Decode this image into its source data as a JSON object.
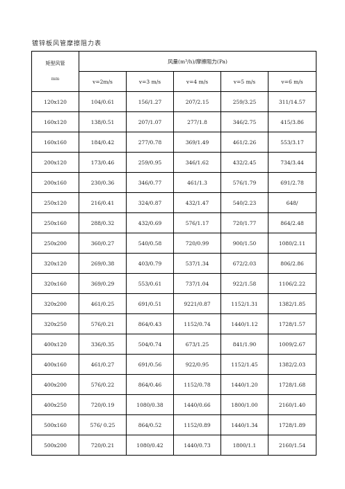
{
  "title": "镀锌板风管摩擦阻力表",
  "header": {
    "corner_label": "矩型风管",
    "corner_unit": "mm",
    "group_label": "风量(m³/h)/摩擦阻力(Pa)",
    "velocities": [
      "v=2m/s",
      "v=3 m/s",
      "v=4 m/s",
      "v=5 m/s",
      "v=6 m/s"
    ]
  },
  "rows": [
    [
      "120x120",
      "104/0.61",
      "156/1.27",
      "207/2.15",
      "259/3.25",
      "311/14.57"
    ],
    [
      "160x120",
      "138/0.51",
      "207/1.07",
      "277/1.8",
      "346/2.75",
      "415/3.86"
    ],
    [
      "160x160",
      "184/0.42",
      "277/0.78",
      "369/1.49",
      "461/2.26",
      "553/3.17"
    ],
    [
      "200x120",
      "173/0.46",
      "259/0.95",
      "346/1.62",
      "432/2.45",
      "734/3.44"
    ],
    [
      "200x160",
      "230/0.36",
      "346/0.77",
      "461/1.3",
      "576/1.79",
      "691/2.78"
    ],
    [
      "250x120",
      "216/0.41",
      "324/0.87",
      "432/1.47",
      "540/2.23",
      "648/"
    ],
    [
      "250x160",
      "288/0.32",
      "432/0.69",
      "576/1.17",
      "720/1.77",
      "864/2.48"
    ],
    [
      "250x200",
      "360/0.27",
      "540/0.58",
      "720/0.99",
      "900/1.50",
      "1080/2.11"
    ],
    [
      "320x120",
      "269/0.38",
      "403/0.79",
      "537/1.34",
      "672/2.03",
      "806/2.86"
    ],
    [
      "320x160",
      "369/0.29",
      "553/0.61",
      "737/1.04",
      "922/1.58",
      "1106/2.22"
    ],
    [
      "320x200",
      "461/0.25",
      "691/0.51",
      "9221/0.87",
      "1152/1.31",
      "1382/1.85"
    ],
    [
      "320x250",
      "576/0.21",
      "864/0.43",
      "1152/0.74",
      "1440/1.12",
      "1728/1.57"
    ],
    [
      "400x120",
      "336/0.35",
      "504/0.74",
      "673/1.25",
      "841/1.90",
      "1009/2.67"
    ],
    [
      "400x160",
      "461/0.27",
      "691/0.56",
      "922/0.95",
      "1152/1.45",
      "1382/2.03"
    ],
    [
      "400x200",
      "576/0.22",
      "864/0.46",
      "1152/0.78",
      "1440/1.20",
      "1728/1.68"
    ],
    [
      "400x250",
      "720/0.19",
      "1080/0.38",
      "1440/0.66",
      "1800/1.00",
      "2160/1.40"
    ],
    [
      "500x160",
      "576/ 0.25",
      "864/0.52",
      "1152/0.89",
      "1440/1.34",
      "1728/1.89"
    ],
    [
      "500x200",
      "720/0.21",
      "1080/0.42",
      "1440/0.73",
      "1800/1.1",
      "2160/1.54"
    ]
  ]
}
